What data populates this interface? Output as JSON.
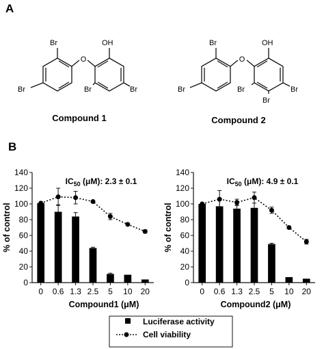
{
  "panels": {
    "A": "A",
    "B": "B"
  },
  "compound1": {
    "name": "Compound 1",
    "atoms": {
      "br_top": "Br",
      "oh": "OH",
      "br_left": "Br",
      "br_bottom_mid": "Br",
      "br_right": "Br"
    }
  },
  "compound2": {
    "name": "Compound 2",
    "atoms": {
      "br_top": "Br",
      "oh": "OH",
      "br_left": "Br",
      "br_mid_left": "Br",
      "br_mid_bottom": "Br",
      "br_right": "Br"
    }
  },
  "legend": {
    "luciferase": "Luciferase activity",
    "viability": "Cell viability"
  },
  "colors": {
    "bar": "#000000",
    "line": "#000000"
  },
  "chart_data": [
    {
      "type": "bar",
      "categories": [
        "0",
        "0.6",
        "1.3",
        "2.5",
        "5",
        "10",
        "20"
      ],
      "xlabel": "Compound1 (μM)",
      "ylabel": "% of control",
      "ylim": [
        0,
        140
      ],
      "yticks": [
        "0",
        "20",
        "40",
        "60",
        "80",
        "100",
        "120",
        "140"
      ],
      "ic50": {
        "prefix": "IC",
        "sub": "50",
        "suffix": " (μM): 2.3 ± 0.1"
      },
      "series": [
        {
          "name": "Luciferase activity",
          "type": "bar",
          "values": [
            101,
            90,
            84,
            44,
            11,
            10,
            4
          ],
          "errors": [
            1,
            9,
            5,
            1,
            1,
            0.5,
            0.5
          ]
        },
        {
          "name": "Cell viability",
          "type": "line",
          "values": [
            101,
            109,
            108,
            103,
            84,
            74,
            65
          ],
          "errors": [
            0,
            11,
            8,
            1,
            4,
            0.5,
            2
          ]
        }
      ]
    },
    {
      "type": "bar",
      "categories": [
        "0",
        "0.6",
        "1.3",
        "2.5",
        "5",
        "10",
        "20"
      ],
      "xlabel": "Compound2 (μM)",
      "ylabel": "% of control",
      "ylim": [
        0,
        140
      ],
      "yticks": [
        "0",
        "20",
        "40",
        "60",
        "80",
        "100",
        "120",
        "140"
      ],
      "ic50": {
        "prefix": "IC",
        "sub": "50",
        "suffix": " (μM): 4.9 ± 0.1"
      },
      "series": [
        {
          "name": "Luciferase activity",
          "type": "bar",
          "values": [
            100,
            97,
            94,
            95,
            49,
            7,
            5
          ],
          "errors": [
            1,
            8,
            5,
            12,
            1,
            0.5,
            0.5
          ]
        },
        {
          "name": "Cell viability",
          "type": "line",
          "values": [
            100,
            106,
            102,
            108,
            92,
            70,
            52
          ],
          "errors": [
            0,
            11,
            4,
            7,
            4,
            1,
            3
          ]
        }
      ]
    }
  ]
}
